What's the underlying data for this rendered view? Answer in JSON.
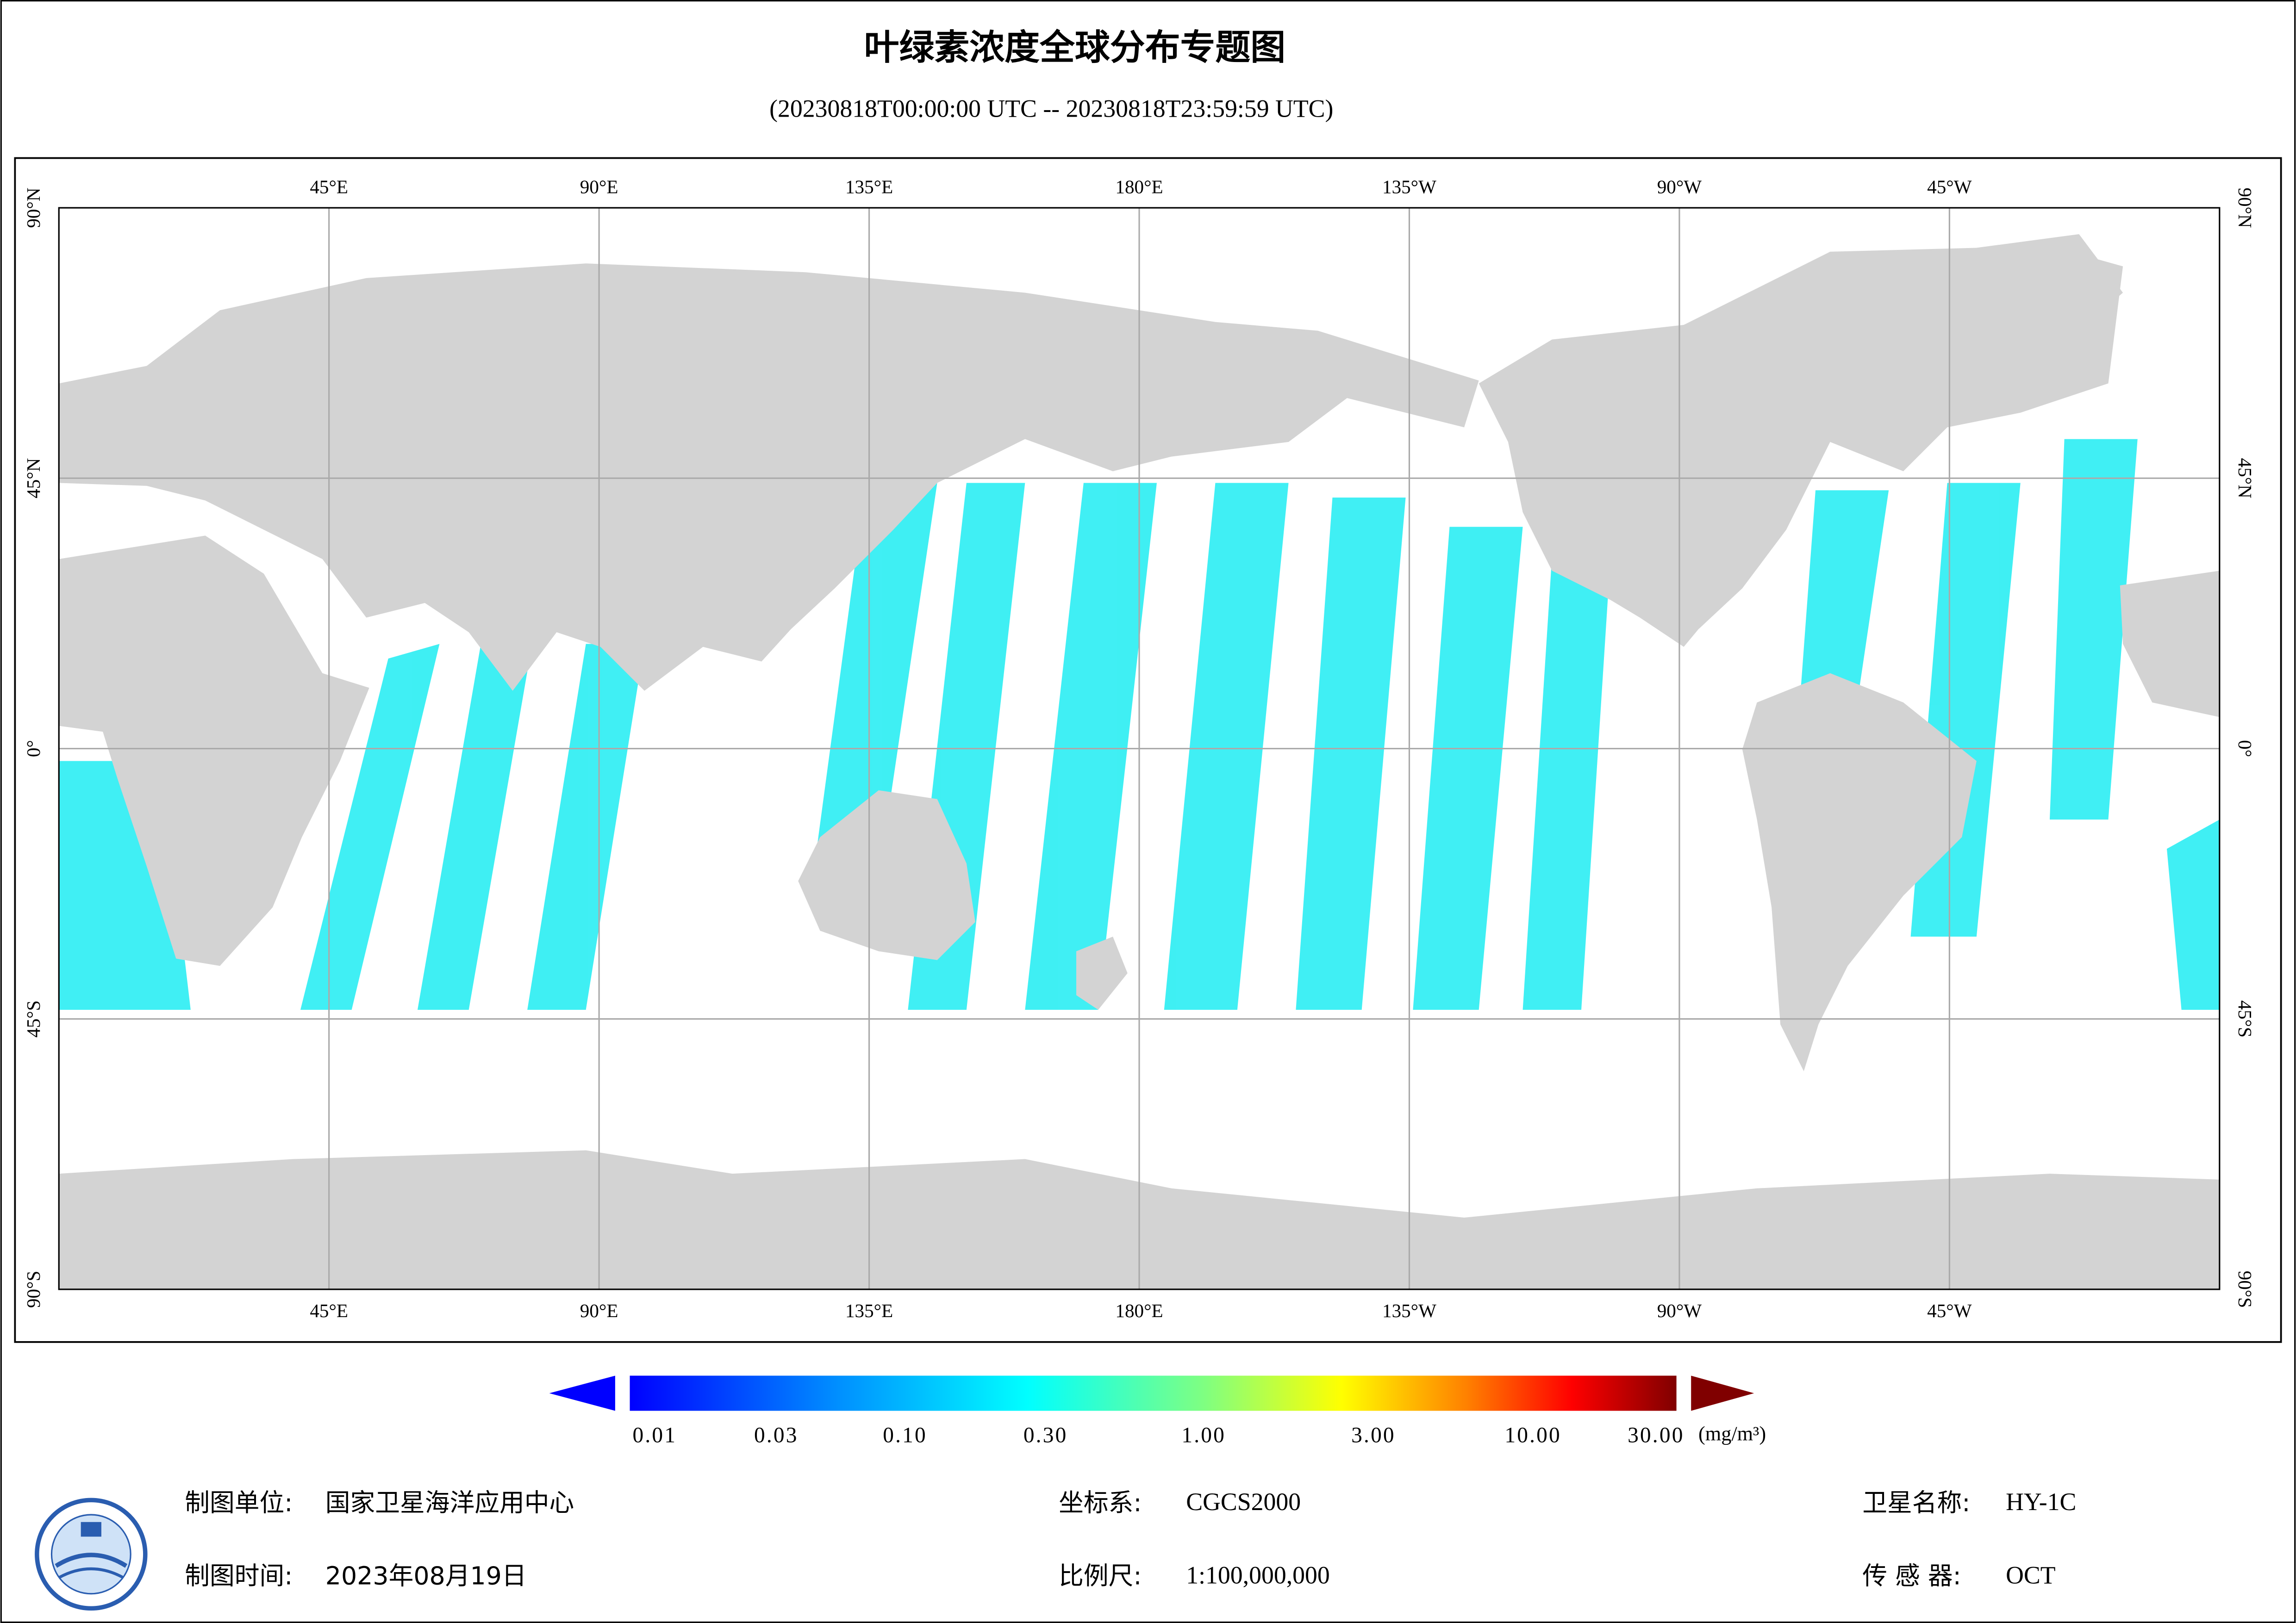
{
  "header": {
    "title": "叶绿素浓度全球分布专题图",
    "subtitle": "(20230818T00:00:00 UTC -- 20230818T23:59:59 UTC)"
  },
  "map": {
    "lon_labels": [
      "45°E",
      "90°E",
      "135°E",
      "180°E",
      "135°W",
      "90°W",
      "45°W"
    ],
    "lat_labels": [
      "90°N",
      "45°N",
      "0°",
      "45°S",
      "90°S"
    ]
  },
  "colorbar": {
    "tick_labels": [
      "0.01",
      "0.03",
      "0.10",
      "0.30",
      "1.00",
      "3.00",
      "10.00",
      "30.00"
    ],
    "unit": "(mg/m³)"
  },
  "footer": {
    "unit_label": "制图单位:",
    "unit": "国家卫星海洋应用中心",
    "time_label": "制图时间:",
    "time": "2023年08月19日",
    "crs_label": "坐标系:",
    "crs": "CGCS2000",
    "scale_label": "比例尺:",
    "scale": "1:100,000,000",
    "satellite_label": "卫星名称:",
    "satellite": "HY-1C",
    "sensor_label": "传 感 器:",
    "sensor": "OCT"
  }
}
